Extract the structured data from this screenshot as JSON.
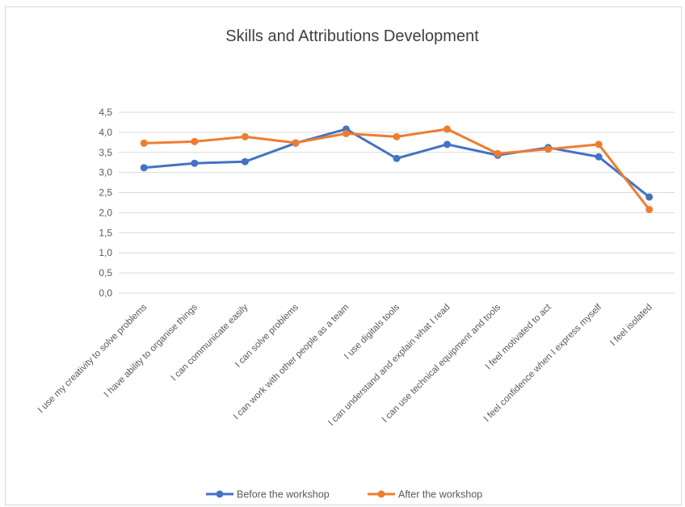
{
  "chart_data": {
    "type": "line",
    "title": "Skills and Attributions Development",
    "categories": [
      "I use my creativity to solve problems",
      "I have ability to organise things",
      "I can communicate easily",
      "I can solve problems",
      "I can work with other people as a team",
      "I use digitals tools",
      "I can understand and explain what I read",
      "I can use technical equipment and tools",
      "I feel motivated to act",
      "I feel confidence when I express myself",
      "I feel isolated"
    ],
    "series": [
      {
        "name": "Before the workshop",
        "color": "#4472C4",
        "values": [
          3.12,
          3.23,
          3.27,
          3.73,
          4.08,
          3.35,
          3.7,
          3.43,
          3.62,
          3.39,
          2.39
        ]
      },
      {
        "name": "After the workshop",
        "color": "#ED7D31",
        "values": [
          3.73,
          3.77,
          3.89,
          3.74,
          3.97,
          3.89,
          4.08,
          3.47,
          3.58,
          3.7,
          2.08
        ]
      }
    ],
    "y_ticks": [
      "0,0",
      "0,5",
      "1,0",
      "1,5",
      "2,0",
      "2,5",
      "3,0",
      "3,5",
      "4,0",
      "4,5"
    ],
    "ylim": [
      0,
      4.5
    ],
    "grid": true,
    "legend_position": "bottom",
    "xlabel": "",
    "ylabel": ""
  }
}
